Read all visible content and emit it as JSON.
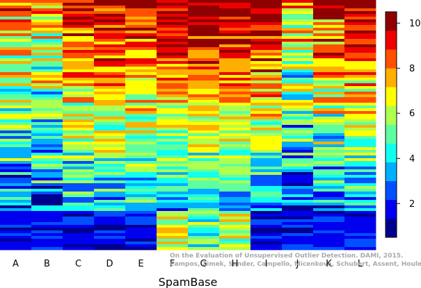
{
  "chart_data": {
    "type": "heatmap",
    "title": "",
    "xlabel": "SpamBase",
    "ylabel": "",
    "columns": [
      "A",
      "B",
      "C",
      "D",
      "E",
      "F",
      "G",
      "H",
      "I",
      "J",
      "K",
      "L"
    ],
    "row_count": 90,
    "bottom_band_fraction": 0.15,
    "value_range": [
      0.5,
      10.5
    ],
    "colorbar": {
      "ticks": [
        2,
        4,
        6,
        8,
        10
      ],
      "levels": [
        "#00008f",
        "#0000ee",
        "#0050ff",
        "#00afff",
        "#10ffef",
        "#5fff9f",
        "#afff4f",
        "#ffff00",
        "#ffaf00",
        "#ff5000",
        "#ee0000",
        "#8f0000"
      ],
      "placement": "right"
    },
    "column_profiles": [
      {
        "name": "A",
        "top_level": 7.5,
        "spread": 2.6
      },
      {
        "name": "B",
        "top_level": 7.0,
        "spread": 2.6
      },
      {
        "name": "C",
        "top_level": 9.5,
        "spread": 2.2
      },
      {
        "name": "D",
        "top_level": 10.0,
        "spread": 2.0
      },
      {
        "name": "E",
        "top_level": 10.0,
        "spread": 2.0
      },
      {
        "name": "F",
        "top_level": 10.5,
        "spread": 1.6
      },
      {
        "name": "G",
        "top_level": 10.5,
        "spread": 1.6
      },
      {
        "name": "H",
        "top_level": 10.5,
        "spread": 1.6
      },
      {
        "name": "I",
        "top_level": 10.5,
        "spread": 2.0
      },
      {
        "name": "J",
        "top_level": 7.0,
        "spread": 2.8
      },
      {
        "name": "K",
        "top_level": 9.0,
        "spread": 2.6
      },
      {
        "name": "L",
        "top_level": 10.0,
        "spread": 2.0
      }
    ],
    "bottom_band_profiles": [
      {
        "name": "F",
        "level": 6.5
      },
      {
        "name": "G",
        "level": 4.5
      },
      {
        "name": "H",
        "level": 6.5
      }
    ],
    "credit": [
      "On the Evaluation of Unsupervised Outlier Detection. DAMI, 2015.",
      "Campos, Zimek, Sander, Campello, Micenková, Schubert, Assent, Houle"
    ]
  }
}
